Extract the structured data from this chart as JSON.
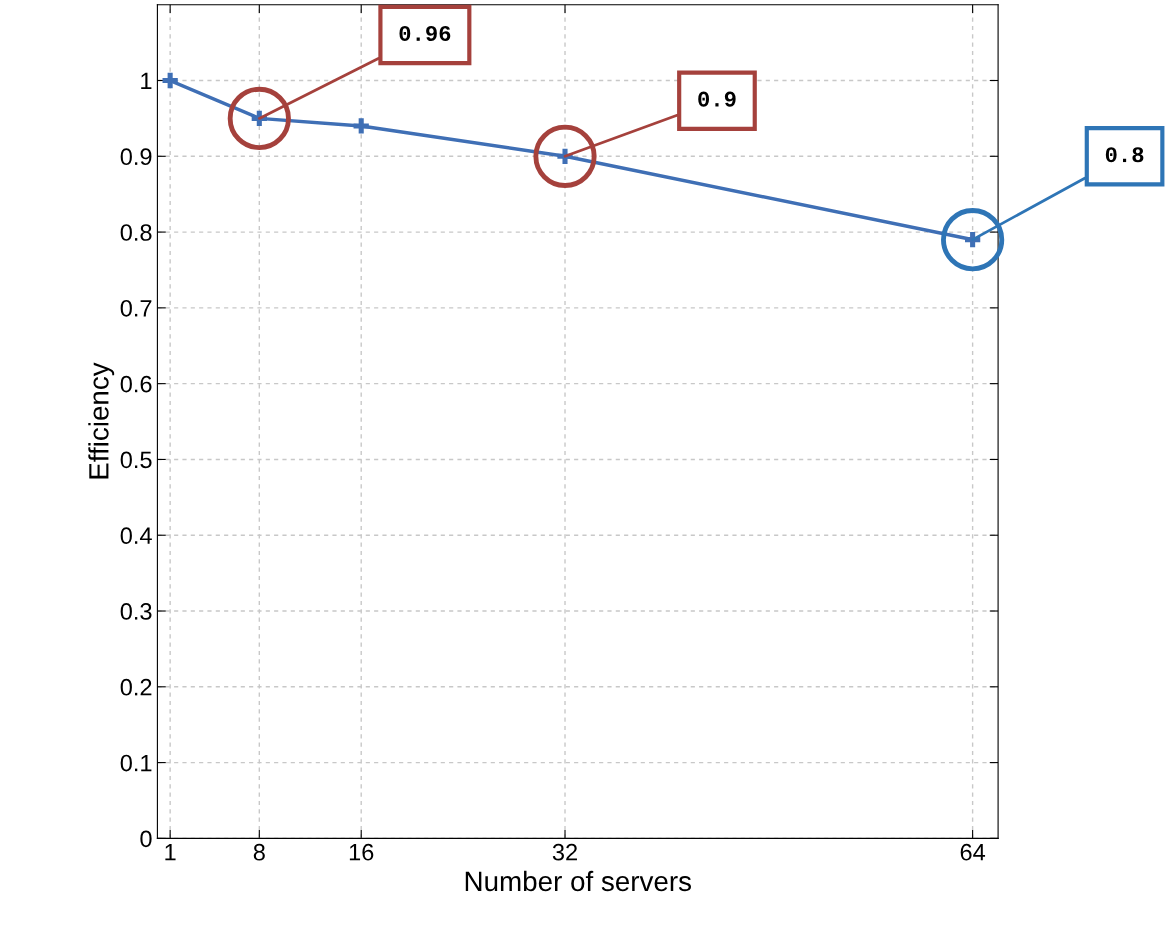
{
  "chart_data": {
    "type": "line",
    "xlabel": "Number of servers",
    "ylabel": "Efficiency",
    "x": [
      1,
      8,
      16,
      32,
      64
    ],
    "series": [
      {
        "color": "#3f6fb5",
        "values": [
          1.0,
          0.95,
          0.94,
          0.9,
          0.79
        ]
      }
    ],
    "xlim": [
      0,
      66
    ],
    "xticks": [
      1,
      8,
      16,
      32,
      64
    ],
    "ylim": [
      0,
      1.1
    ],
    "yticks": [
      0,
      0.1,
      0.2,
      0.3,
      0.4,
      0.5,
      0.6,
      0.7,
      0.8,
      0.9,
      1
    ],
    "grid": true,
    "marker": "cross",
    "line_style": "solid",
    "annotations": [
      {
        "text": "0.96",
        "x": 8,
        "y": 0.95
      },
      {
        "text": "0.9",
        "x": 32,
        "y": 0.9
      },
      {
        "text": "0.8",
        "x": 64,
        "y": 0.79
      }
    ]
  }
}
